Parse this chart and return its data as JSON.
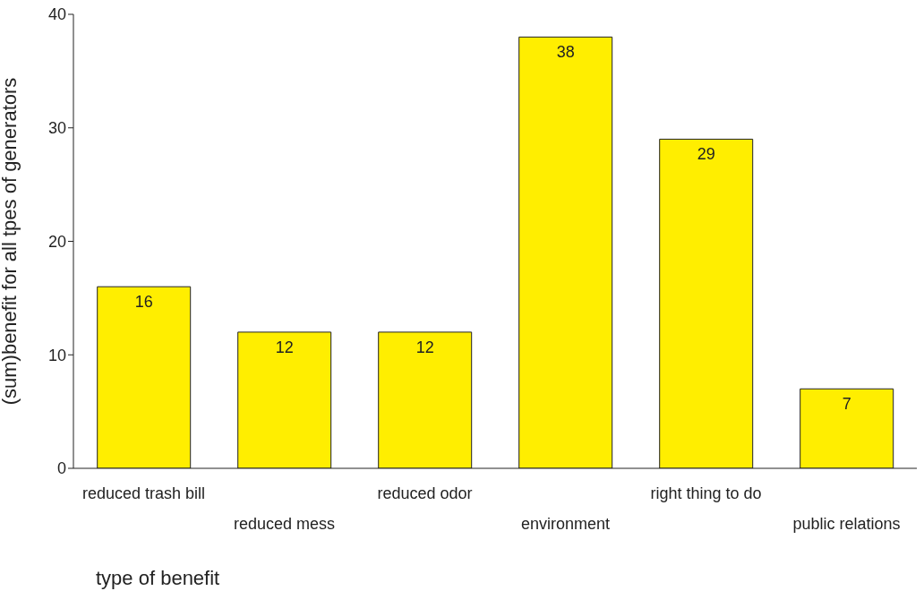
{
  "chart_data": {
    "type": "bar",
    "xlabel": "type of benefit",
    "ylabel": "(sum)benefit for all tpes of generators",
    "categories": [
      "reduced trash bill",
      "reduced mess",
      "reduced odor",
      "environment",
      "right thing to do",
      "public relations"
    ],
    "values": [
      16,
      12,
      12,
      38,
      29,
      7
    ],
    "color": "#ffee00",
    "ylim": [
      0,
      40
    ],
    "yticks": [
      0,
      10,
      20,
      30,
      40
    ],
    "data_labels": true,
    "grid": false
  }
}
